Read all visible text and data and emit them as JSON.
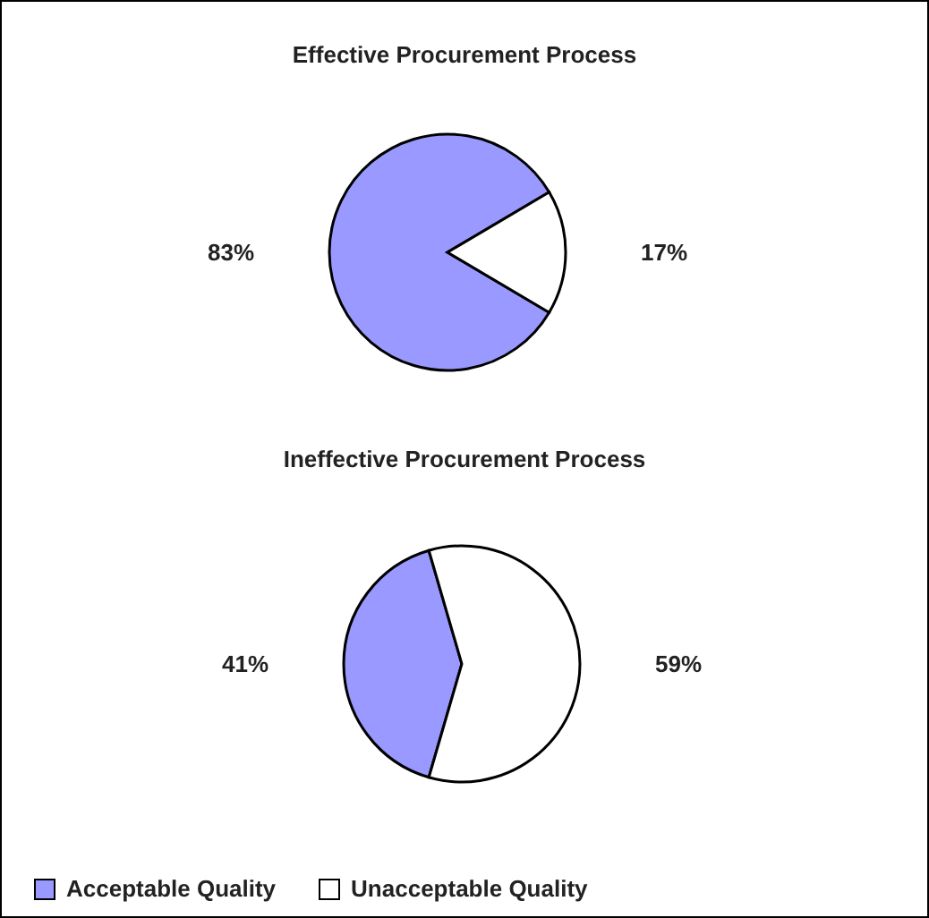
{
  "chart_data": [
    {
      "type": "pie",
      "title": "Effective Procurement Process",
      "categories": [
        null,
        null
      ],
      "values": [
        83,
        17
      ],
      "colors": [
        "#9999ff",
        "#ffffff"
      ],
      "value_labels": [
        "83%",
        "17%"
      ],
      "legend": false
    },
    {
      "type": "pie",
      "title": "Ineffective Procurement Process",
      "categories": [
        "Acceptable Quality",
        "Unacceptable Quality"
      ],
      "values": [
        41,
        59
      ],
      "colors": [
        "#9999ff",
        "#ffffff"
      ],
      "value_labels": [
        "41%",
        "59%"
      ],
      "legend": "bottom"
    }
  ]
}
